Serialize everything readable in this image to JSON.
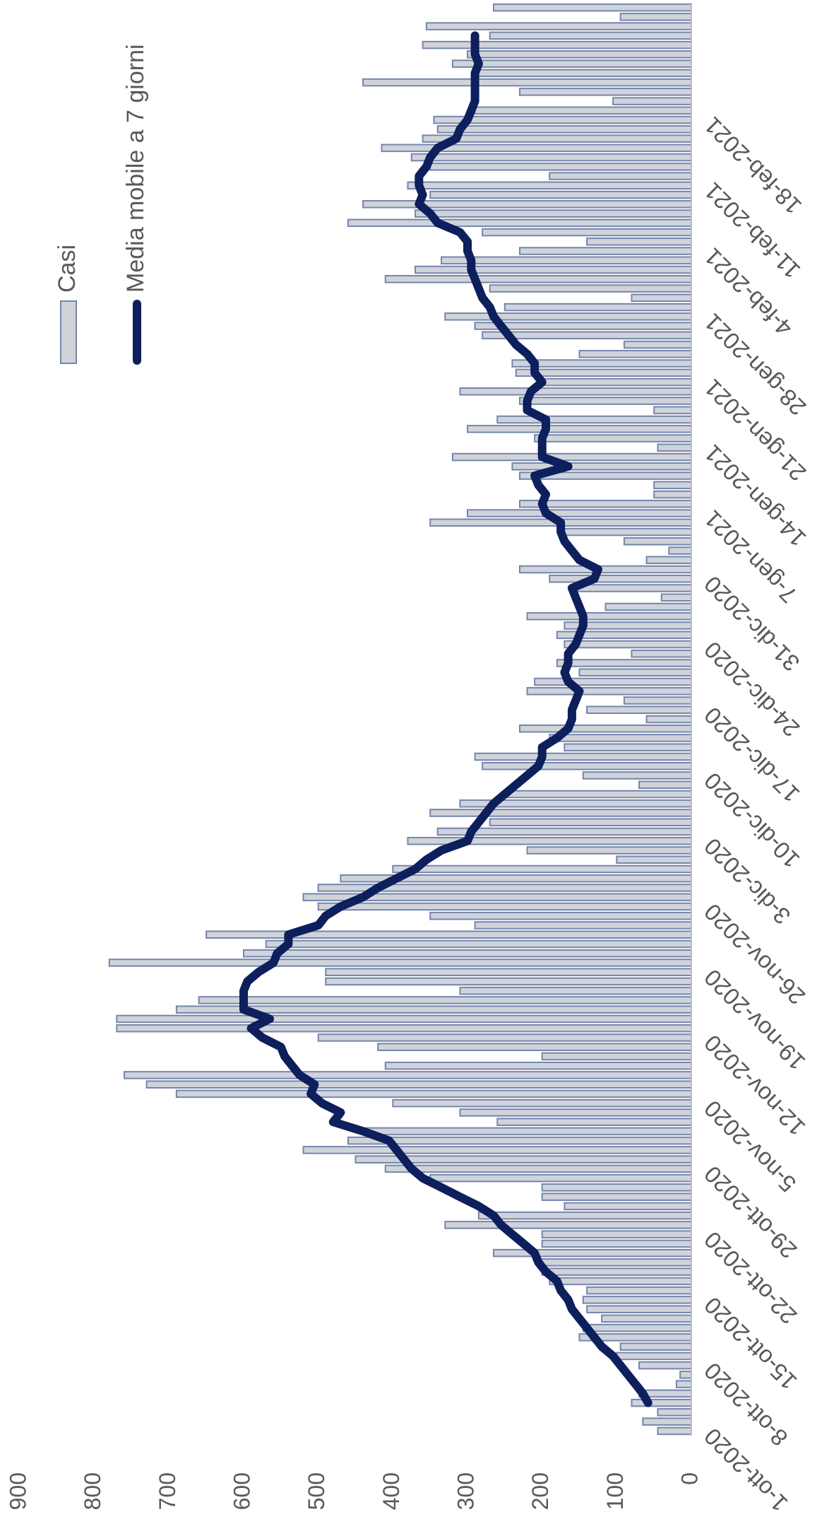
{
  "chart_data": {
    "type": "combo",
    "categories": [
      "1-ott-2020",
      null,
      null,
      null,
      null,
      null,
      null,
      "8-ott-2020",
      null,
      null,
      null,
      null,
      null,
      null,
      "15-ott-2020",
      null,
      null,
      null,
      null,
      null,
      null,
      "22-ott-2020",
      null,
      null,
      null,
      null,
      null,
      null,
      "29-ott-2020",
      null,
      null,
      null,
      null,
      null,
      null,
      "5-nov-2020",
      null,
      null,
      null,
      null,
      null,
      null,
      "12-nov-2020",
      null,
      null,
      null,
      null,
      null,
      null,
      "19-nov-2020",
      null,
      null,
      null,
      null,
      null,
      null,
      "26-nov-2020",
      null,
      null,
      null,
      null,
      null,
      null,
      "3-dic-2020",
      null,
      null,
      null,
      null,
      null,
      null,
      "10-dic-2020",
      null,
      null,
      null,
      null,
      null,
      null,
      "17-dic-2020",
      null,
      null,
      null,
      null,
      null,
      null,
      "24-dic-2020",
      null,
      null,
      null,
      null,
      null,
      null,
      "31-dic-2020",
      null,
      null,
      null,
      null,
      null,
      null,
      "7-gen-2021",
      null,
      null,
      null,
      null,
      null,
      null,
      "14-gen-2021",
      null,
      null,
      null,
      null,
      null,
      null,
      "21-gen-2021",
      null,
      null,
      null,
      null,
      null,
      null,
      "28-gen-2021",
      null,
      null,
      null,
      null,
      null,
      null,
      "4-feb-2021",
      null,
      null,
      null,
      null,
      null,
      null,
      "11-feb-2021",
      null,
      null,
      null,
      null,
      null,
      null,
      "18-feb-2021",
      null,
      null,
      null,
      null,
      null,
      null,
      null,
      null,
      null,
      null,
      null,
      null
    ],
    "series": [
      {
        "name": "Casi",
        "type": "bar",
        "color": "#d0d3d9",
        "edge": "#7486ad",
        "values": [
          45,
          65,
          45,
          80,
          70,
          20,
          15,
          70,
          100,
          95,
          150,
          145,
          120,
          140,
          145,
          140,
          190,
          200,
          205,
          265,
          200,
          200,
          330,
          285,
          170,
          200,
          200,
          350,
          410,
          450,
          520,
          460,
          440,
          260,
          310,
          400,
          690,
          730,
          760,
          410,
          200,
          420,
          500,
          770,
          770,
          690,
          660,
          310,
          490,
          490,
          780,
          600,
          570,
          650,
          290,
          350,
          500,
          520,
          500,
          470,
          400,
          100,
          220,
          380,
          340,
          270,
          350,
          310,
          250,
          70,
          145,
          280,
          290,
          170,
          190,
          230,
          60,
          140,
          90,
          220,
          210,
          150,
          180,
          80,
          170,
          180,
          170,
          220,
          115,
          40,
          160,
          190,
          230,
          60,
          30,
          90,
          170,
          350,
          300,
          230,
          50,
          50,
          230,
          240,
          320,
          45,
          210,
          300,
          260,
          50,
          230,
          310,
          200,
          235,
          240,
          150,
          90,
          280,
          290,
          330,
          250,
          80,
          270,
          410,
          370,
          335,
          230,
          140,
          280,
          460,
          370,
          440,
          350,
          380,
          190,
          350,
          375,
          415,
          360,
          340,
          345,
          290,
          105,
          230,
          440,
          290,
          320,
          300,
          360,
          270,
          355,
          95,
          265
        ]
      },
      {
        "name": "Media mobile a 7 giorni",
        "type": "line",
        "color": "#0d1f5c",
        "values": [
          null,
          null,
          null,
          58,
          65,
          75,
          85,
          95,
          105,
          120,
          130,
          140,
          150,
          160,
          165,
          175,
          180,
          195,
          205,
          210,
          225,
          240,
          255,
          265,
          285,
          310,
          335,
          360,
          375,
          385,
          395,
          405,
          440,
          480,
          470,
          495,
          510,
          505,
          525,
          535,
          545,
          550,
          575,
          590,
          565,
          600,
          600,
          600,
          595,
          580,
          560,
          555,
          540,
          540,
          500,
          490,
          470,
          440,
          420,
          395,
          370,
          355,
          335,
          300,
          295,
          285,
          275,
          265,
          250,
          235,
          220,
          205,
          200,
          200,
          180,
          165,
          160,
          160,
          155,
          150,
          165,
          170,
          165,
          165,
          155,
          150,
          145,
          145,
          150,
          155,
          160,
          130,
          125,
          150,
          160,
          170,
          175,
          175,
          195,
          200,
          195,
          205,
          210,
          165,
          200,
          200,
          200,
          195,
          195,
          220,
          220,
          215,
          200,
          210,
          210,
          220,
          235,
          245,
          255,
          265,
          270,
          280,
          285,
          290,
          295,
          295,
          300,
          300,
          310,
          340,
          350,
          365,
          360,
          365,
          365,
          355,
          350,
          340,
          315,
          310,
          300,
          295,
          290,
          290,
          290,
          290,
          285,
          290,
          290,
          290,
          null,
          null,
          null
        ]
      }
    ],
    "ylim": [
      0,
      900
    ],
    "yticks": [
      0,
      100,
      200,
      300,
      400,
      500,
      600,
      700,
      800,
      900
    ],
    "grid": false,
    "legend": "top-right"
  }
}
